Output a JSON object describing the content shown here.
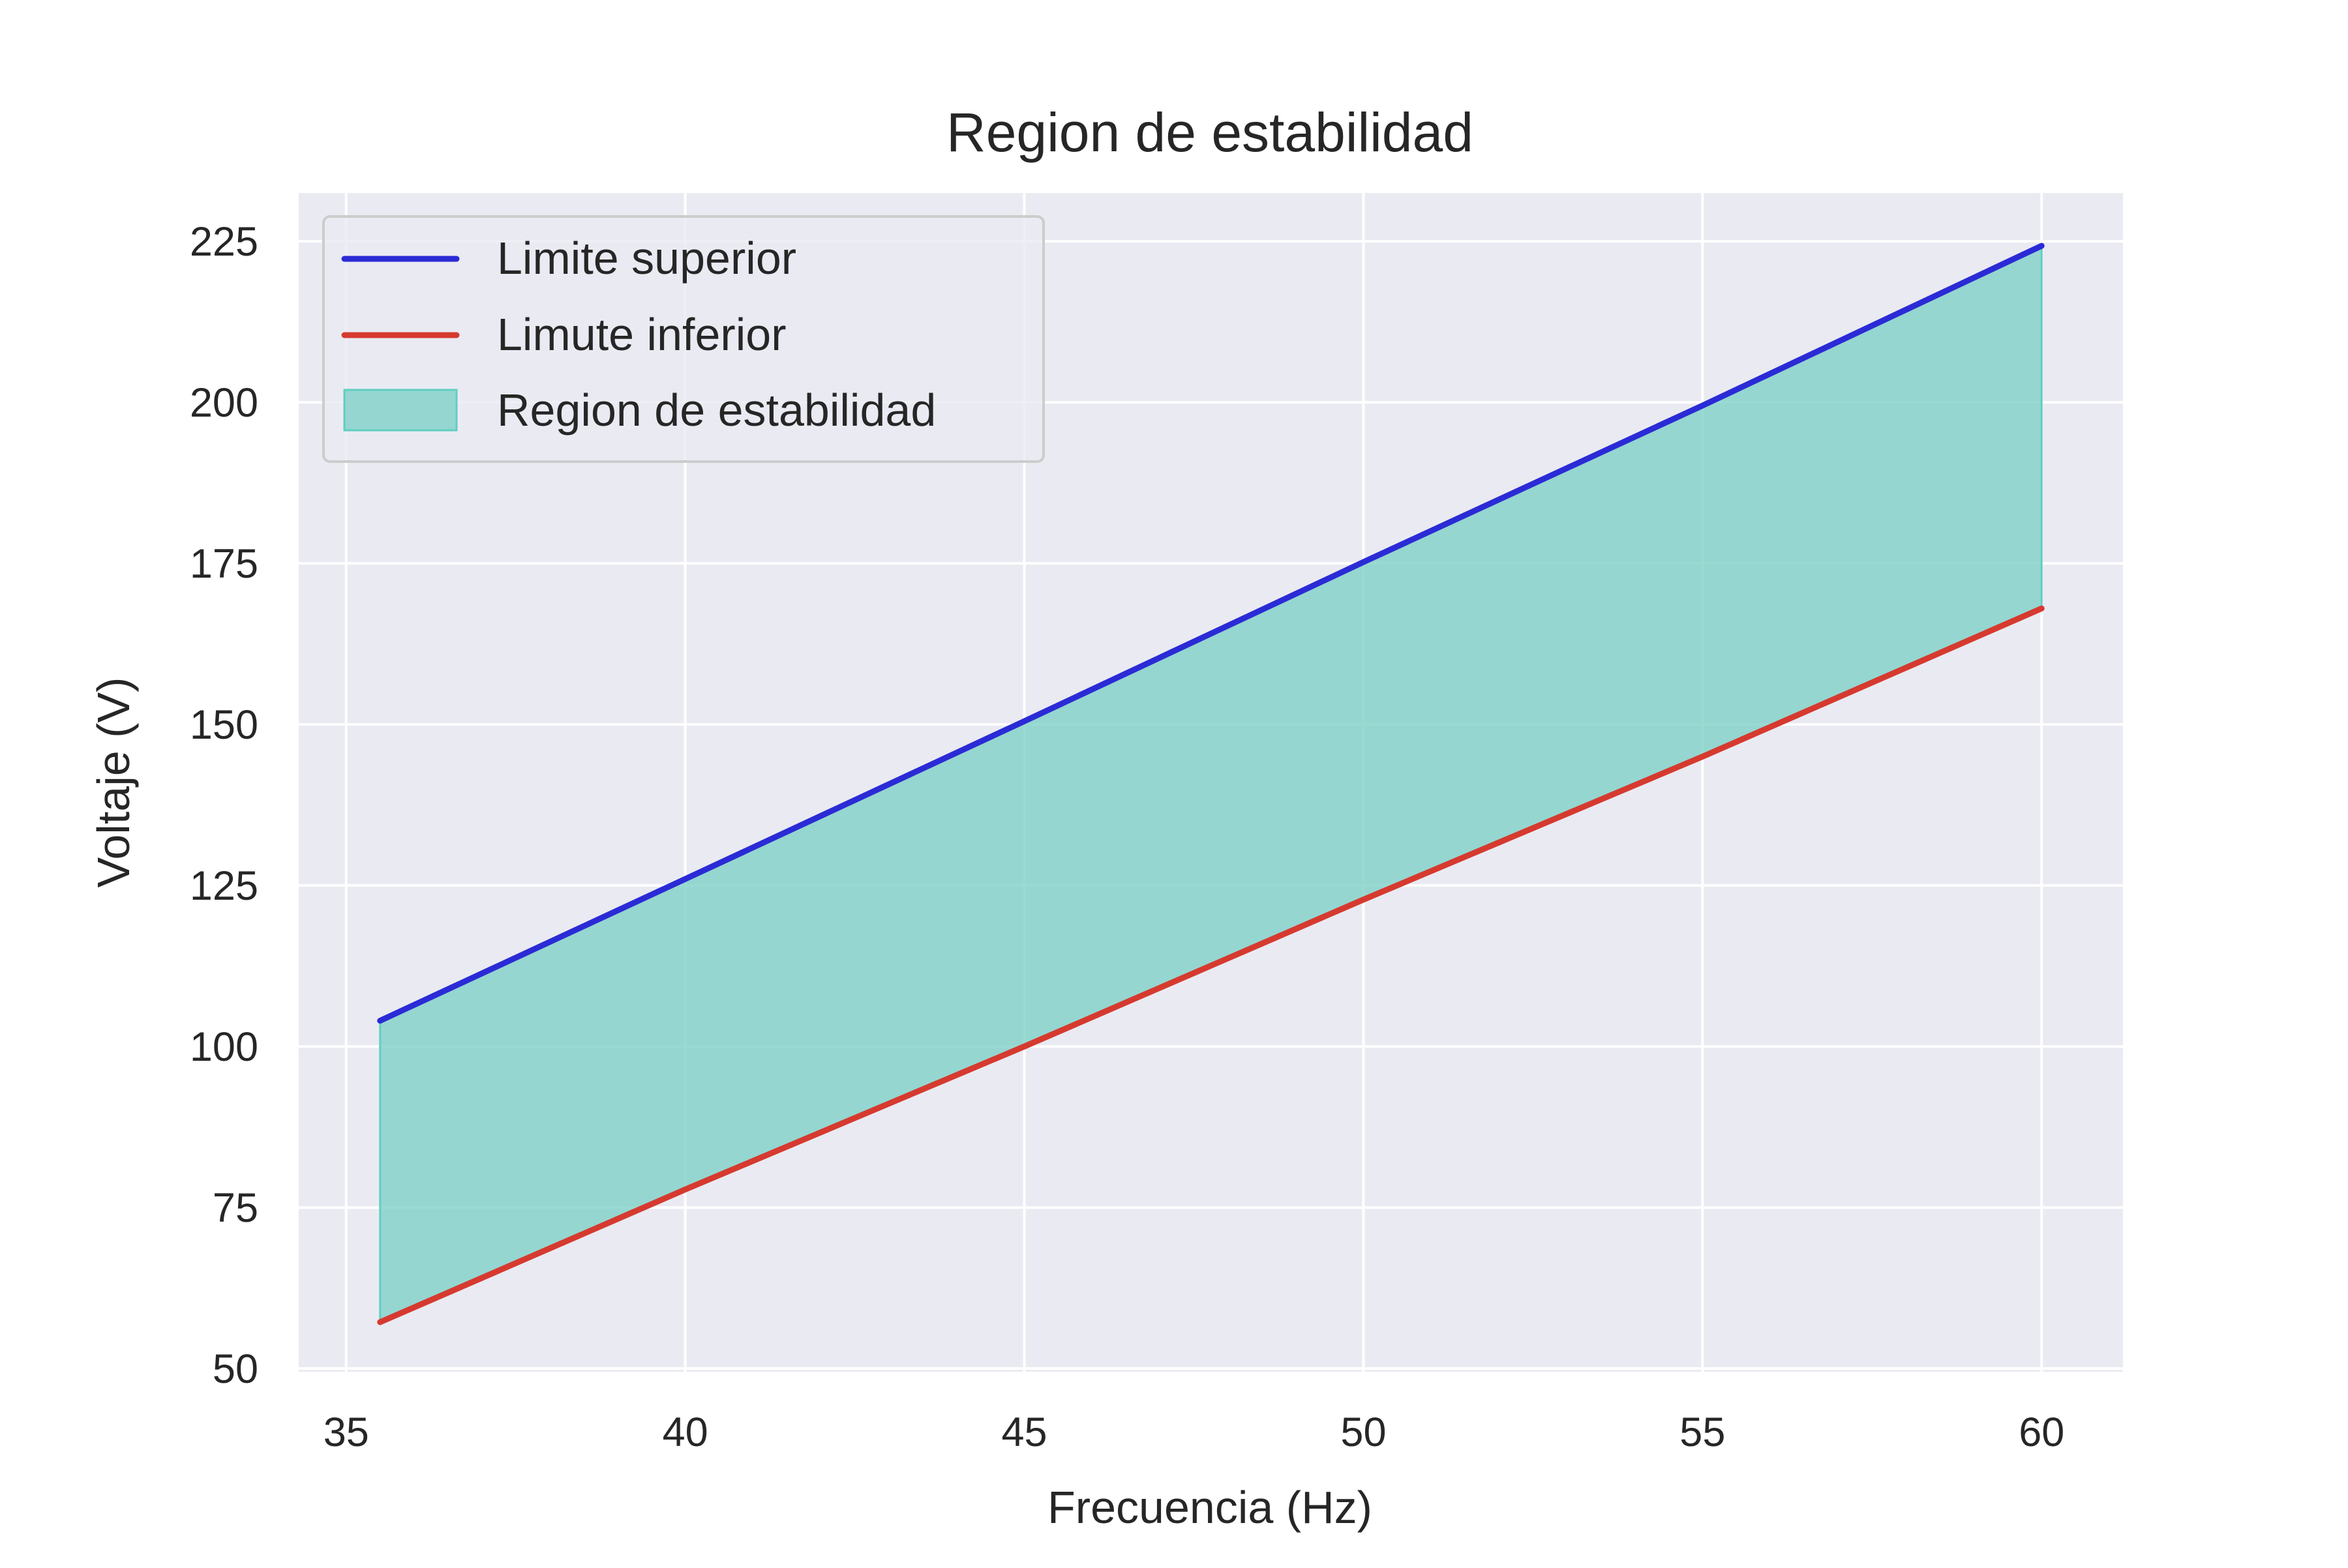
{
  "chart_data": {
    "type": "line",
    "title": "Region de estabilidad",
    "xlabel": "Frecuencia (Hz)",
    "ylabel": "Voltaje (V)",
    "xlim": [
      34.3,
      61.2
    ],
    "ylim": [
      49.5,
      232.5
    ],
    "xticks": [
      35,
      40,
      45,
      50,
      55,
      60
    ],
    "yticks": [
      50,
      75,
      100,
      125,
      150,
      175,
      200,
      225
    ],
    "grid": true,
    "legend_position": "top-left",
    "x": [
      35.5,
      40,
      45,
      50,
      55,
      60
    ],
    "series": [
      {
        "name": "Limite superior",
        "type": "line",
        "color": "#2b2bd6",
        "values": [
          104,
          126,
          150.5,
          175.2,
          199.5,
          224.3
        ]
      },
      {
        "name": "Limute inferior",
        "type": "line",
        "color": "#d63a2f",
        "values": [
          57.2,
          77.8,
          100,
          122.8,
          145,
          168
        ]
      }
    ],
    "fill_between": {
      "name": "Region de estabilidad",
      "color": "#7fd1c7",
      "between": [
        "Limite superior",
        "Limute inferior"
      ]
    }
  },
  "colors": {
    "plot_background": "#eaeaf2",
    "grid": "#ffffff",
    "text": "#262626"
  }
}
